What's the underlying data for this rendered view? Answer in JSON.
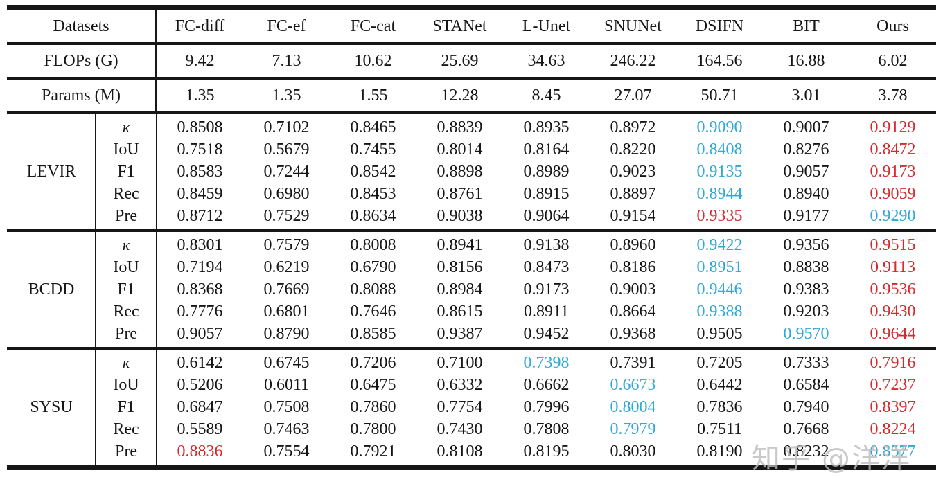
{
  "colors": {
    "best_red": "#d42a2e",
    "second_blue": "#2fa7d8",
    "text": "#161616",
    "watermark_gray": "#bcbcbc"
  },
  "header": {
    "datasets_label": "Datasets",
    "methods": [
      "FC-diff",
      "FC-ef",
      "FC-cat",
      "STANet",
      "L-Unet",
      "SNUNet",
      "DSIFN",
      "BIT",
      "Ours"
    ]
  },
  "perf_rows": [
    {
      "label": "FLOPs (G)",
      "values": [
        "9.42",
        "7.13",
        "10.62",
        "25.69",
        "34.63",
        "246.22",
        "164.56",
        "16.88",
        "6.02"
      ]
    },
    {
      "label": "Params (M)",
      "values": [
        "1.35",
        "1.35",
        "1.55",
        "12.28",
        "8.45",
        "27.07",
        "50.71",
        "3.01",
        "3.78"
      ]
    }
  ],
  "blocks": [
    {
      "dataset": "LEVIR",
      "rows": [
        {
          "metric": "κ",
          "values": [
            "0.8508",
            "0.7102",
            "0.8465",
            "0.8839",
            "0.8935",
            "0.8972",
            "0.9090",
            "0.9007",
            "0.9129"
          ],
          "best": 8,
          "second": 6
        },
        {
          "metric": "IoU",
          "values": [
            "0.7518",
            "0.5679",
            "0.7455",
            "0.8014",
            "0.8164",
            "0.8220",
            "0.8408",
            "0.8276",
            "0.8472"
          ],
          "best": 8,
          "second": 6
        },
        {
          "metric": "F1",
          "values": [
            "0.8583",
            "0.7244",
            "0.8542",
            "0.8898",
            "0.8989",
            "0.9023",
            "0.9135",
            "0.9057",
            "0.9173"
          ],
          "best": 8,
          "second": 6
        },
        {
          "metric": "Rec",
          "values": [
            "0.8459",
            "0.6980",
            "0.8453",
            "0.8761",
            "0.8915",
            "0.8897",
            "0.8944",
            "0.8940",
            "0.9059"
          ],
          "best": 8,
          "second": 6
        },
        {
          "metric": "Pre",
          "values": [
            "0.8712",
            "0.7529",
            "0.8634",
            "0.9038",
            "0.9064",
            "0.9154",
            "0.9335",
            "0.9177",
            "0.9290"
          ],
          "best": 6,
          "second": 8
        }
      ]
    },
    {
      "dataset": "BCDD",
      "rows": [
        {
          "metric": "κ",
          "values": [
            "0.8301",
            "0.7579",
            "0.8008",
            "0.8941",
            "0.9138",
            "0.8960",
            "0.9422",
            "0.9356",
            "0.9515"
          ],
          "best": 8,
          "second": 6
        },
        {
          "metric": "IoU",
          "values": [
            "0.7194",
            "0.6219",
            "0.6790",
            "0.8156",
            "0.8473",
            "0.8186",
            "0.8951",
            "0.8838",
            "0.9113"
          ],
          "best": 8,
          "second": 6
        },
        {
          "metric": "F1",
          "values": [
            "0.8368",
            "0.7669",
            "0.8088",
            "0.8984",
            "0.9173",
            "0.9003",
            "0.9446",
            "0.9383",
            "0.9536"
          ],
          "best": 8,
          "second": 6
        },
        {
          "metric": "Rec",
          "values": [
            "0.7776",
            "0.6801",
            "0.7646",
            "0.8615",
            "0.8911",
            "0.8664",
            "0.9388",
            "0.9203",
            "0.9430"
          ],
          "best": 8,
          "second": 6
        },
        {
          "metric": "Pre",
          "values": [
            "0.9057",
            "0.8790",
            "0.8585",
            "0.9387",
            "0.9452",
            "0.9368",
            "0.9505",
            "0.9570",
            "0.9644"
          ],
          "best": 8,
          "second": 7
        }
      ]
    },
    {
      "dataset": "SYSU",
      "rows": [
        {
          "metric": "κ",
          "values": [
            "0.6142",
            "0.6745",
            "0.7206",
            "0.7100",
            "0.7398",
            "0.7391",
            "0.7205",
            "0.7333",
            "0.7916"
          ],
          "best": 8,
          "second": 4
        },
        {
          "metric": "IoU",
          "values": [
            "0.5206",
            "0.6011",
            "0.6475",
            "0.6332",
            "0.6662",
            "0.6673",
            "0.6442",
            "0.6584",
            "0.7237"
          ],
          "best": 8,
          "second": 5
        },
        {
          "metric": "F1",
          "values": [
            "0.6847",
            "0.7508",
            "0.7860",
            "0.7754",
            "0.7996",
            "0.8004",
            "0.7836",
            "0.7940",
            "0.8397"
          ],
          "best": 8,
          "second": 5
        },
        {
          "metric": "Rec",
          "values": [
            "0.5589",
            "0.7463",
            "0.7800",
            "0.7430",
            "0.7808",
            "0.7979",
            "0.7511",
            "0.7668",
            "0.8224"
          ],
          "best": 8,
          "second": 5
        },
        {
          "metric": "Pre",
          "values": [
            "0.8836",
            "0.7554",
            "0.7921",
            "0.8108",
            "0.8195",
            "0.8030",
            "0.8190",
            "0.8232",
            "0.8577"
          ],
          "best": 0,
          "second": 8
        }
      ]
    }
  ],
  "watermark": {
    "text": "知乎 @洋洋"
  }
}
